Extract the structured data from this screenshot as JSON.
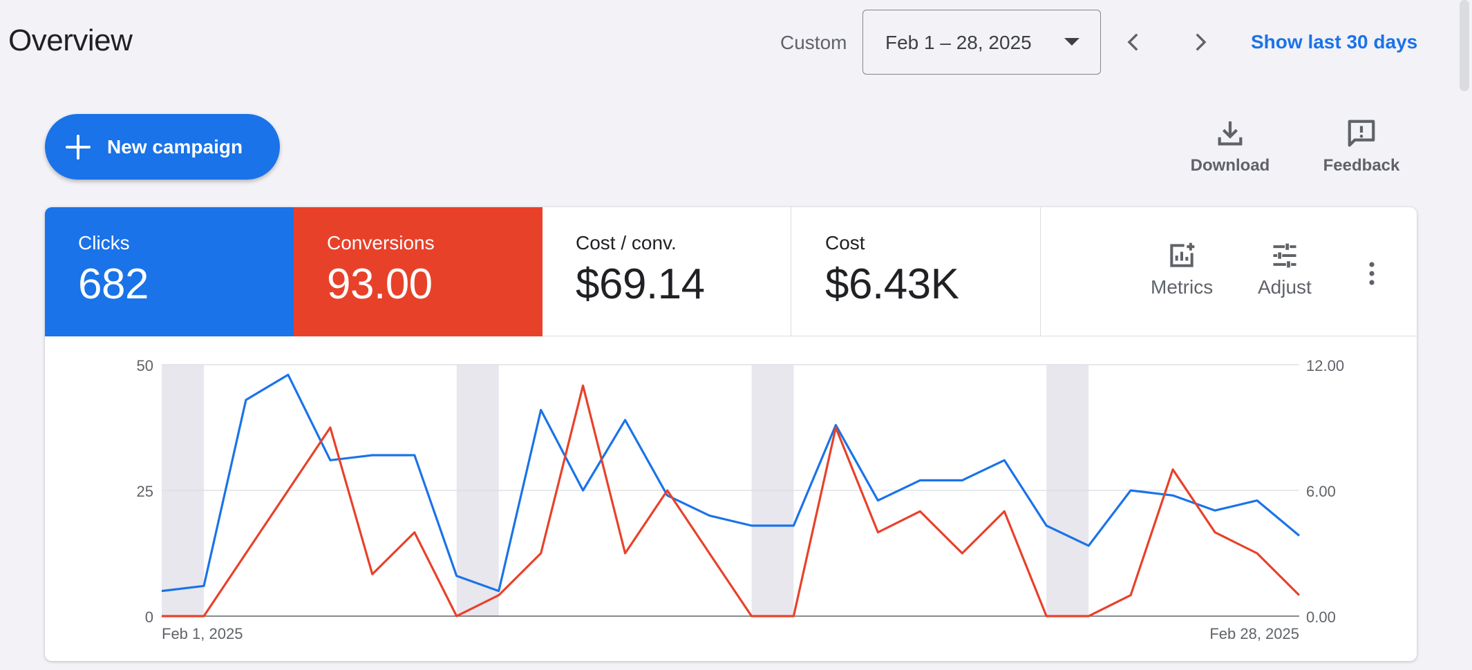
{
  "header": {
    "title": "Overview",
    "date_range_label": "Custom",
    "date_range_value": "Feb 1 – 28, 2025",
    "show_last_link": "Show last 30 days"
  },
  "actions": {
    "new_campaign": "New campaign",
    "download": "Download",
    "feedback": "Feedback"
  },
  "scorecards": [
    {
      "name": "Clicks",
      "value": "682",
      "color": "#1a73e8"
    },
    {
      "name": "Conversions",
      "value": "93.00",
      "color": "#e8412a"
    },
    {
      "name": "Cost / conv.",
      "value": "$69.14"
    },
    {
      "name": "Cost",
      "value": "$6.43K"
    }
  ],
  "card_tools": {
    "metrics": "Metrics",
    "adjust": "Adjust"
  },
  "chart_data": {
    "type": "line",
    "x": [
      "Feb 1",
      "Feb 2",
      "Feb 3",
      "Feb 4",
      "Feb 5",
      "Feb 6",
      "Feb 7",
      "Feb 8",
      "Feb 9",
      "Feb 10",
      "Feb 11",
      "Feb 12",
      "Feb 13",
      "Feb 14",
      "Feb 15",
      "Feb 16",
      "Feb 17",
      "Feb 18",
      "Feb 19",
      "Feb 20",
      "Feb 21",
      "Feb 22",
      "Feb 23",
      "Feb 24",
      "Feb 25",
      "Feb 26",
      "Feb 27",
      "Feb 28"
    ],
    "x_tick_labels": [
      "Feb 1, 2025",
      "Feb 28, 2025"
    ],
    "series": [
      {
        "axis": "left",
        "color": "#1a73e8",
        "values": [
          5,
          6,
          43,
          48,
          31,
          32,
          32,
          8,
          5,
          41,
          25,
          39,
          24,
          20,
          18,
          18,
          38,
          23,
          27,
          27,
          31,
          18,
          14,
          25,
          24,
          21,
          23,
          16
        ]
      },
      {
        "axis": "right",
        "color": "#e8412a",
        "values": [
          0,
          0,
          3,
          6,
          9,
          2,
          4,
          0,
          1,
          3,
          11,
          3,
          6,
          3,
          0,
          0,
          9,
          4,
          5,
          3,
          5,
          0,
          0,
          1,
          7,
          4,
          3,
          1
        ]
      }
    ],
    "y_left": {
      "ticks": [
        "50",
        "25",
        "0"
      ],
      "range": [
        0,
        50
      ]
    },
    "y_right": {
      "ticks": [
        "12.00",
        "6.00",
        "0.00"
      ],
      "range": [
        0,
        12
      ]
    },
    "shaded_x_ranges": [
      [
        "Feb 1",
        "Feb 2"
      ],
      [
        "Feb 8",
        "Feb 9"
      ],
      [
        "Feb 15",
        "Feb 16"
      ],
      [
        "Feb 22",
        "Feb 23"
      ]
    ],
    "grid": true
  }
}
